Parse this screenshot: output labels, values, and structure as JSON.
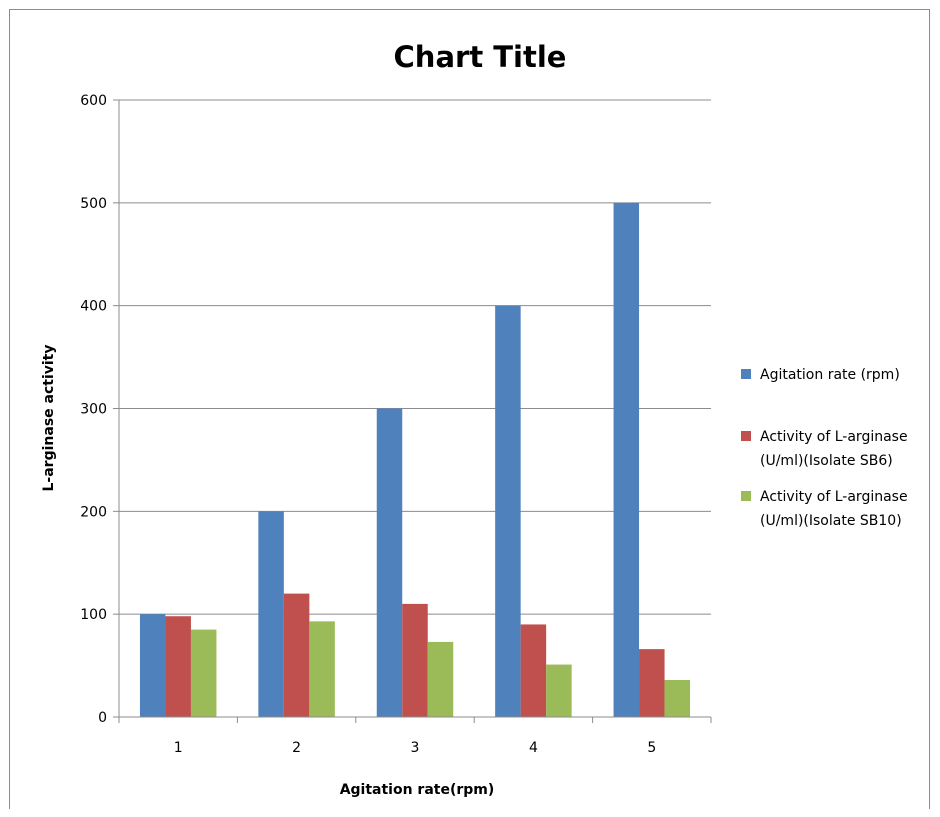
{
  "chart_data": {
    "type": "bar",
    "title": "Chart Title",
    "xlabel": "Agitation rate(rpm)",
    "ylabel": "L-arginase activity",
    "categories": [
      "1",
      "2",
      "3",
      "4",
      "5"
    ],
    "ylim": [
      0,
      600
    ],
    "yticks": [
      "0",
      "100",
      "200",
      "300",
      "400",
      "500",
      "600"
    ],
    "grid": true,
    "legend_position": "right",
    "series": [
      {
        "name": "Agitation rate (rpm)",
        "name_lines": [
          "Agitation rate (rpm)"
        ],
        "color": "#4f81bd",
        "values": [
          100,
          200,
          300,
          400,
          500
        ]
      },
      {
        "name": "Activity of L-arginase (U/ml)(Isolate SB6)",
        "name_lines": [
          "Activity of L-arginase",
          "(U/ml)(Isolate SB6)"
        ],
        "color": "#c0504d",
        "values": [
          98,
          120,
          110,
          90,
          66
        ]
      },
      {
        "name": "Activity of L-arginase (U/ml)(Isolate SB10)",
        "name_lines": [
          "Activity of L-arginase",
          "(U/ml)(Isolate SB10)"
        ],
        "color": "#9bbb59",
        "values": [
          85,
          93,
          73,
          51,
          36
        ]
      }
    ]
  }
}
